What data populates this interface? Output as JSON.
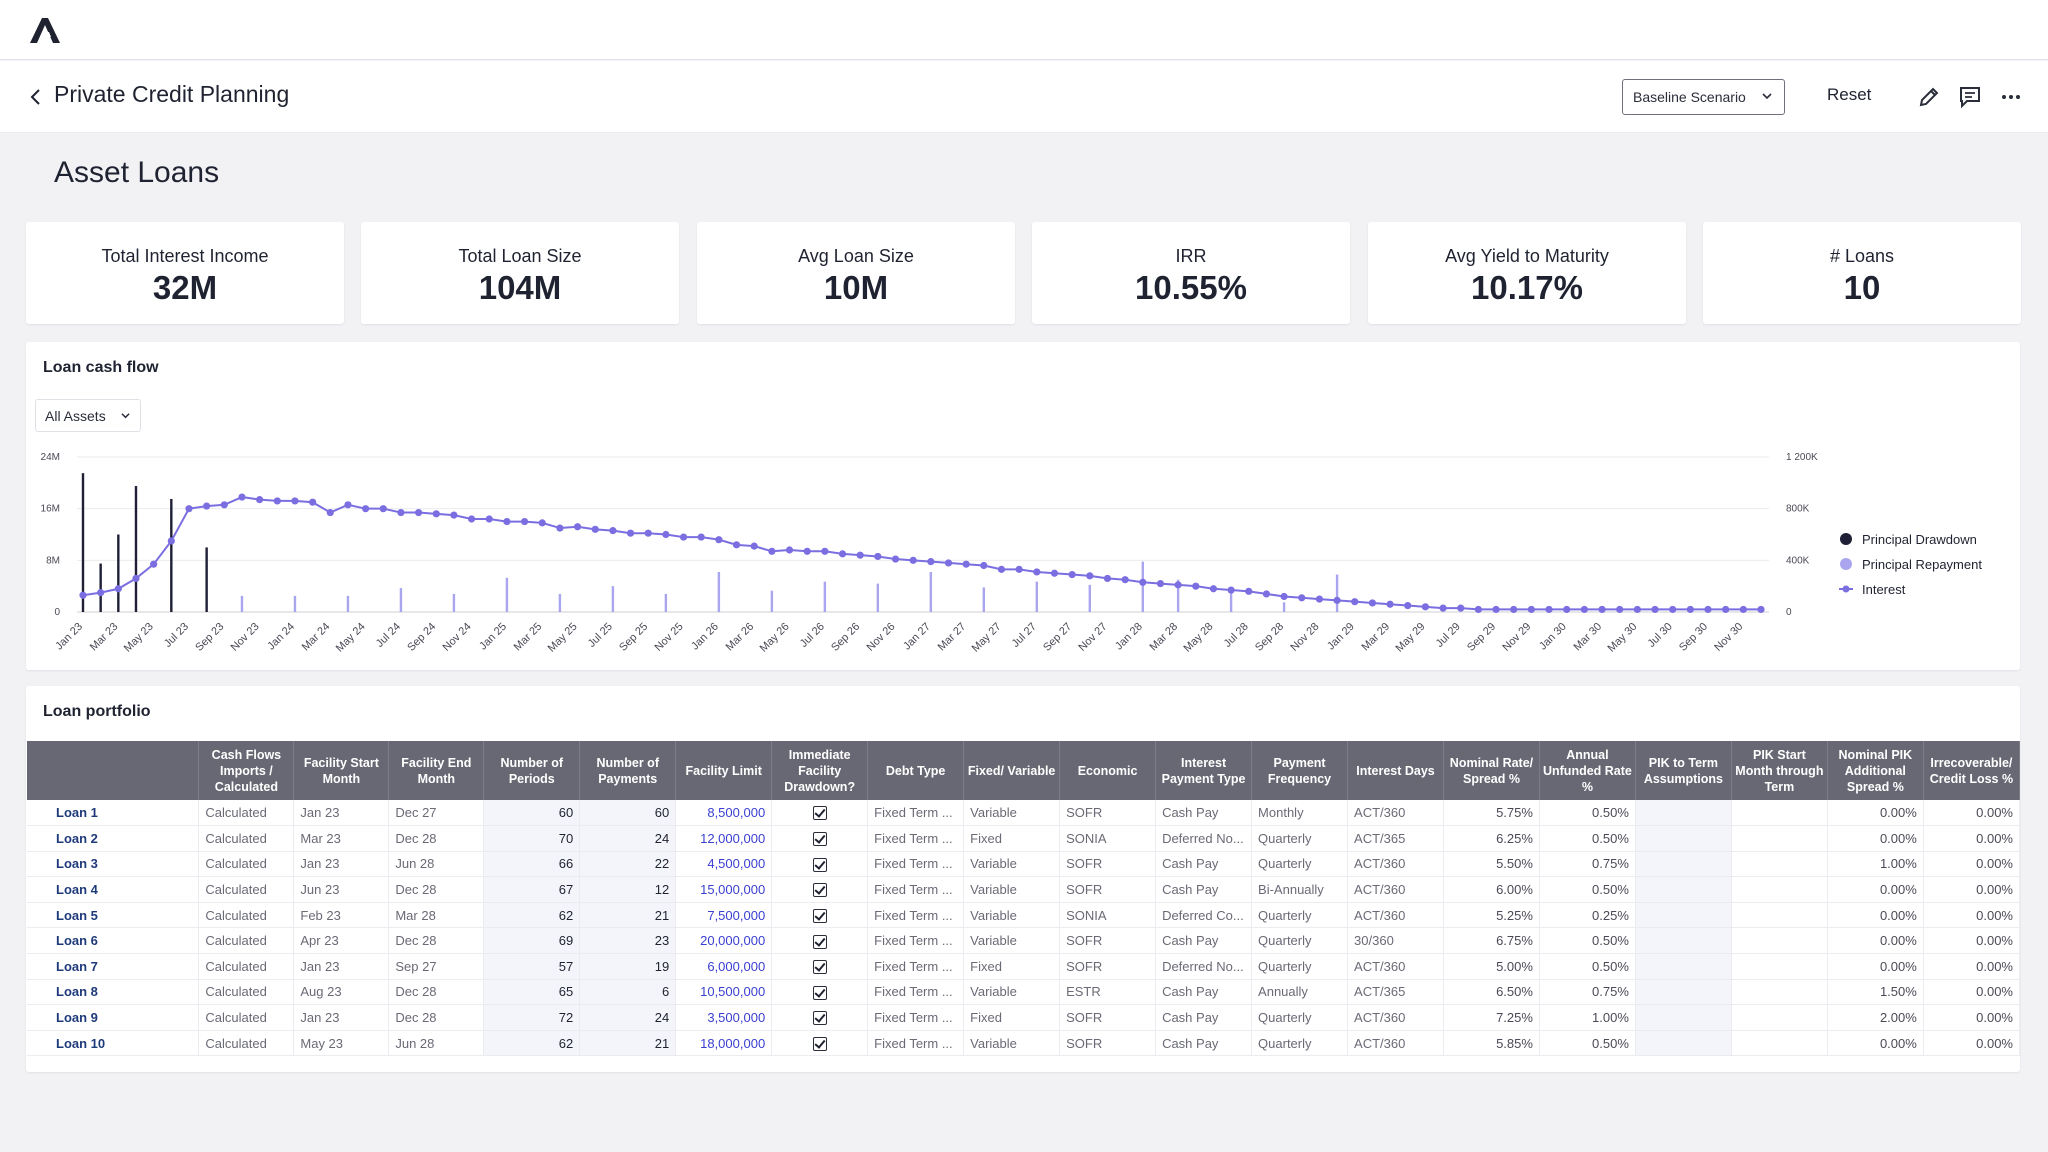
{
  "header": {
    "breadcrumb": "Private Credit Planning",
    "scenario": "Baseline Scenario",
    "reset_label": "Reset"
  },
  "page_title": "Asset Loans",
  "kpis": [
    {
      "label": "Total Interest Income",
      "value": "32M"
    },
    {
      "label": "Total Loan Size",
      "value": "104M"
    },
    {
      "label": "Avg Loan Size",
      "value": "10M"
    },
    {
      "label": "IRR",
      "value": "10.55%"
    },
    {
      "label": "Avg Yield to Maturity",
      "value": "10.17%"
    },
    {
      "label": "# Loans",
      "value": "10"
    }
  ],
  "cashflow": {
    "title": "Loan cash flow",
    "filter": "All Assets"
  },
  "chart_data": {
    "type": "bar",
    "x": [
      "Jan 23",
      "Feb 23",
      "Mar 23",
      "Apr 23",
      "May 23",
      "Jun 23",
      "Jul 23",
      "Aug 23",
      "Sep 23",
      "Oct 23",
      "Nov 23",
      "Dec 23",
      "Jan 24",
      "Feb 24",
      "Mar 24",
      "Apr 24",
      "May 24",
      "Jun 24",
      "Jul 24",
      "Aug 24",
      "Sep 24",
      "Oct 24",
      "Nov 24",
      "Dec 24",
      "Jan 25",
      "Feb 25",
      "Mar 25",
      "Apr 25",
      "May 25",
      "Jun 25",
      "Jul 25",
      "Aug 25",
      "Sep 25",
      "Oct 25",
      "Nov 25",
      "Dec 25",
      "Jan 26",
      "Feb 26",
      "Mar 26",
      "Apr 26",
      "May 26",
      "Jun 26",
      "Jul 26",
      "Aug 26",
      "Sep 26",
      "Oct 26",
      "Nov 26",
      "Dec 26",
      "Jan 27",
      "Feb 27",
      "Mar 27",
      "Apr 27",
      "May 27",
      "Jun 27",
      "Jul 27",
      "Aug 27",
      "Sep 27",
      "Oct 27",
      "Nov 27",
      "Dec 27",
      "Jan 28",
      "Feb 28",
      "Mar 28",
      "Apr 28",
      "May 28",
      "Jun 28",
      "Jul 28",
      "Aug 28",
      "Sep 28",
      "Oct 28",
      "Nov 28",
      "Dec 28",
      "Jan 29",
      "Feb 29",
      "Mar 29",
      "Apr 29",
      "May 29",
      "Jun 29",
      "Jul 29",
      "Aug 29",
      "Sep 29",
      "Oct 29",
      "Nov 29",
      "Dec 29",
      "Jan 30",
      "Feb 30",
      "Mar 30",
      "Apr 30",
      "May 30",
      "Jun 30",
      "Jul 30",
      "Aug 30",
      "Sep 30",
      "Oct 30",
      "Nov 30",
      "Dec 30"
    ],
    "xticks": [
      "Jan 23",
      "Mar 23",
      "May 23",
      "Jul 23",
      "Sep 23",
      "Nov 23",
      "Jan 24",
      "Mar 24",
      "May 24",
      "Jul 24",
      "Sep 24",
      "Nov 24",
      "Jan 25",
      "Mar 25",
      "May 25",
      "Jul 25",
      "Sep 25",
      "Nov 25",
      "Jan 26",
      "Mar 26",
      "May 26",
      "Jul 26",
      "Sep 26",
      "Nov 26",
      "Jan 27",
      "Mar 27",
      "May 27",
      "Jul 27",
      "Sep 27",
      "Nov 27",
      "Jan 28",
      "Mar 28",
      "May 28",
      "Jul 28",
      "Sep 28",
      "Nov 28",
      "Jan 29",
      "Mar 29",
      "May 29",
      "Jul 29",
      "Sep 29",
      "Nov 29",
      "Jan 30",
      "Mar 30",
      "May 30",
      "Jul 30",
      "Sep 30",
      "Nov 30"
    ],
    "y_left": {
      "ticks": [
        "0",
        "8M",
        "16M",
        "24M"
      ],
      "range": [
        0,
        24000000
      ]
    },
    "y_right": {
      "ticks": [
        "0",
        "400K",
        "800K",
        "1 200K"
      ],
      "range": [
        0,
        1200000
      ]
    },
    "legend_position": "right",
    "grid": true,
    "series": [
      {
        "name": "Principal Drawdown",
        "type": "bar",
        "axis": "left",
        "color": "#1f2036",
        "points": [
          {
            "x": "Jan 23",
            "y": 21500000
          },
          {
            "x": "Feb 23",
            "y": 7500000
          },
          {
            "x": "Mar 23",
            "y": 12000000
          },
          {
            "x": "Apr 23",
            "y": 19500000
          },
          {
            "x": "Jun 23",
            "y": 17500000
          },
          {
            "x": "Aug 23",
            "y": 10000000
          }
        ]
      },
      {
        "name": "Principal Repayment",
        "type": "bar",
        "axis": "left",
        "color": "#a9a6ef",
        "points": [
          {
            "x": "Oct 23",
            "y": 2500000
          },
          {
            "x": "Jan 24",
            "y": 2500000
          },
          {
            "x": "Apr 24",
            "y": 2500000
          },
          {
            "x": "Jul 24",
            "y": 3700000
          },
          {
            "x": "Oct 24",
            "y": 2800000
          },
          {
            "x": "Jan 25",
            "y": 5300000
          },
          {
            "x": "Apr 25",
            "y": 2800000
          },
          {
            "x": "Jul 25",
            "y": 4000000
          },
          {
            "x": "Oct 25",
            "y": 2800000
          },
          {
            "x": "Jan 26",
            "y": 6200000
          },
          {
            "x": "Apr 26",
            "y": 3300000
          },
          {
            "x": "Jul 26",
            "y": 4700000
          },
          {
            "x": "Oct 26",
            "y": 4400000
          },
          {
            "x": "Jan 27",
            "y": 6200000
          },
          {
            "x": "Apr 27",
            "y": 3800000
          },
          {
            "x": "Jul 27",
            "y": 4700000
          },
          {
            "x": "Oct 27",
            "y": 4200000
          },
          {
            "x": "Jan 28",
            "y": 7800000
          },
          {
            "x": "Mar 28",
            "y": 5000000
          },
          {
            "x": "Jun 28",
            "y": 3000000
          },
          {
            "x": "Sep 28",
            "y": 1500000
          },
          {
            "x": "Dec 28",
            "y": 5800000
          }
        ]
      },
      {
        "name": "Interest",
        "type": "line",
        "axis": "right",
        "color": "#7a6ee0",
        "values": [
          130000,
          150000,
          180000,
          260000,
          370000,
          550000,
          800000,
          820000,
          830000,
          890000,
          870000,
          860000,
          860000,
          850000,
          770000,
          830000,
          800000,
          800000,
          770000,
          770000,
          760000,
          750000,
          720000,
          720000,
          700000,
          700000,
          690000,
          650000,
          660000,
          640000,
          630000,
          610000,
          610000,
          600000,
          580000,
          580000,
          560000,
          520000,
          510000,
          470000,
          480000,
          470000,
          470000,
          450000,
          440000,
          430000,
          410000,
          400000,
          390000,
          380000,
          370000,
          360000,
          330000,
          330000,
          310000,
          300000,
          290000,
          280000,
          260000,
          250000,
          230000,
          220000,
          210000,
          200000,
          180000,
          170000,
          160000,
          140000,
          120000,
          110000,
          100000,
          90000,
          80000,
          70000,
          60000,
          50000,
          40000,
          30000,
          30000,
          20000,
          20000,
          20000,
          20000,
          20000,
          20000,
          20000,
          20000,
          20000,
          20000,
          20000,
          20000,
          20000,
          20000,
          20000,
          20000,
          20000
        ]
      }
    ]
  },
  "portfolio": {
    "title": "Loan portfolio",
    "columns": [
      "",
      "Cash Flows Imports / Calculated",
      "Facility Start Month",
      "Facility End Month",
      "Number of Periods",
      "Number of Payments",
      "Facility Limit",
      "Immediate Facility Drawdown?",
      "Debt Type",
      "Fixed/ Variable",
      "Economic",
      "Interest Payment Type",
      "Payment Frequency",
      "Interest Days",
      "Nominal Rate/ Spread %",
      "Annual Unfunded Rate %",
      "PIK to Term Assumptions",
      "PIK Start Month through Term",
      "Nominal PIK Additional Spread %",
      "Irrecoverable/ Credit Loss %"
    ],
    "rows": [
      {
        "name": "Loan 1",
        "cf": "Calculated",
        "start": "Jan 23",
        "end": "Dec 27",
        "periods": "60",
        "payments": "60",
        "limit": "8,500,000",
        "drawdown": true,
        "debt": "Fixed Term ...",
        "fv": "Variable",
        "econ": "SOFR",
        "ipt": "Cash Pay",
        "freq": "Monthly",
        "days": "ACT/360",
        "rate": "5.75%",
        "unfunded": "0.50%",
        "pik_term": "",
        "pik_start": "",
        "pik_spread": "0.00%",
        "loss": "0.00%"
      },
      {
        "name": "Loan 2",
        "cf": "Calculated",
        "start": "Mar 23",
        "end": "Dec 28",
        "periods": "70",
        "payments": "24",
        "limit": "12,000,000",
        "drawdown": true,
        "debt": "Fixed Term ...",
        "fv": "Fixed",
        "econ": "SONIA",
        "ipt": "Deferred No...",
        "freq": "Quarterly",
        "days": "ACT/365",
        "rate": "6.25%",
        "unfunded": "0.50%",
        "pik_term": "",
        "pik_start": "",
        "pik_spread": "0.00%",
        "loss": "0.00%"
      },
      {
        "name": "Loan 3",
        "cf": "Calculated",
        "start": "Jan 23",
        "end": "Jun 28",
        "periods": "66",
        "payments": "22",
        "limit": "4,500,000",
        "drawdown": true,
        "debt": "Fixed Term ...",
        "fv": "Variable",
        "econ": "SOFR",
        "ipt": "Cash Pay",
        "freq": "Quarterly",
        "days": "ACT/360",
        "rate": "5.50%",
        "unfunded": "0.75%",
        "pik_term": "",
        "pik_start": "",
        "pik_spread": "1.00%",
        "loss": "0.00%"
      },
      {
        "name": "Loan 4",
        "cf": "Calculated",
        "start": "Jun 23",
        "end": "Dec 28",
        "periods": "67",
        "payments": "12",
        "limit": "15,000,000",
        "drawdown": true,
        "debt": "Fixed Term ...",
        "fv": "Variable",
        "econ": "SOFR",
        "ipt": "Cash Pay",
        "freq": "Bi-Annually",
        "days": "ACT/360",
        "rate": "6.00%",
        "unfunded": "0.50%",
        "pik_term": "",
        "pik_start": "",
        "pik_spread": "0.00%",
        "loss": "0.00%"
      },
      {
        "name": "Loan 5",
        "cf": "Calculated",
        "start": "Feb 23",
        "end": "Mar 28",
        "periods": "62",
        "payments": "21",
        "limit": "7,500,000",
        "drawdown": true,
        "debt": "Fixed Term ...",
        "fv": "Variable",
        "econ": "SONIA",
        "ipt": "Deferred Co...",
        "freq": "Quarterly",
        "days": "ACT/360",
        "rate": "5.25%",
        "unfunded": "0.25%",
        "pik_term": "",
        "pik_start": "",
        "pik_spread": "0.00%",
        "loss": "0.00%"
      },
      {
        "name": "Loan 6",
        "cf": "Calculated",
        "start": "Apr 23",
        "end": "Dec 28",
        "periods": "69",
        "payments": "23",
        "limit": "20,000,000",
        "drawdown": true,
        "debt": "Fixed Term ...",
        "fv": "Variable",
        "econ": "SOFR",
        "ipt": "Cash Pay",
        "freq": "Quarterly",
        "days": "30/360",
        "rate": "6.75%",
        "unfunded": "0.50%",
        "pik_term": "",
        "pik_start": "",
        "pik_spread": "0.00%",
        "loss": "0.00%"
      },
      {
        "name": "Loan 7",
        "cf": "Calculated",
        "start": "Jan 23",
        "end": "Sep 27",
        "periods": "57",
        "payments": "19",
        "limit": "6,000,000",
        "drawdown": true,
        "debt": "Fixed Term ...",
        "fv": "Fixed",
        "econ": "SOFR",
        "ipt": "Deferred No...",
        "freq": "Quarterly",
        "days": "ACT/360",
        "rate": "5.00%",
        "unfunded": "0.50%",
        "pik_term": "",
        "pik_start": "",
        "pik_spread": "0.00%",
        "loss": "0.00%"
      },
      {
        "name": "Loan 8",
        "cf": "Calculated",
        "start": "Aug 23",
        "end": "Dec 28",
        "periods": "65",
        "payments": "6",
        "limit": "10,500,000",
        "drawdown": true,
        "debt": "Fixed Term ...",
        "fv": "Variable",
        "econ": "ESTR",
        "ipt": "Cash Pay",
        "freq": "Annually",
        "days": "ACT/365",
        "rate": "6.50%",
        "unfunded": "0.75%",
        "pik_term": "",
        "pik_start": "",
        "pik_spread": "1.50%",
        "loss": "0.00%"
      },
      {
        "name": "Loan 9",
        "cf": "Calculated",
        "start": "Jan 23",
        "end": "Dec 28",
        "periods": "72",
        "payments": "24",
        "limit": "3,500,000",
        "drawdown": true,
        "debt": "Fixed Term ...",
        "fv": "Fixed",
        "econ": "SOFR",
        "ipt": "Cash Pay",
        "freq": "Quarterly",
        "days": "ACT/360",
        "rate": "7.25%",
        "unfunded": "1.00%",
        "pik_term": "",
        "pik_start": "",
        "pik_spread": "2.00%",
        "loss": "0.00%"
      },
      {
        "name": "Loan 10",
        "cf": "Calculated",
        "start": "May 23",
        "end": "Jun 28",
        "periods": "62",
        "payments": "21",
        "limit": "18,000,000",
        "drawdown": true,
        "debt": "Fixed Term ...",
        "fv": "Variable",
        "econ": "SOFR",
        "ipt": "Cash Pay",
        "freq": "Quarterly",
        "days": "ACT/360",
        "rate": "5.85%",
        "unfunded": "0.50%",
        "pik_term": "",
        "pik_start": "",
        "pik_spread": "0.00%",
        "loss": "0.00%"
      }
    ]
  }
}
